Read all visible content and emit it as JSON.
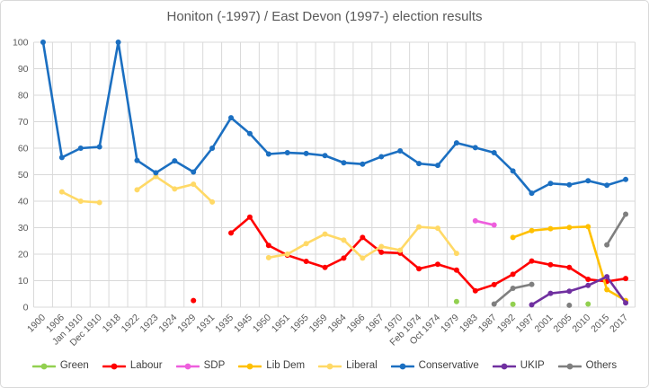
{
  "chart_data": {
    "type": "line",
    "title": "Honiton (-1997) / East Devon (1997-) election results",
    "xlabel": "",
    "ylabel": "",
    "ylim": [
      0,
      100
    ],
    "y_ticks": [
      0,
      10,
      20,
      30,
      40,
      50,
      60,
      70,
      80,
      90,
      100
    ],
    "grid": true,
    "legend_position": "bottom",
    "axis_label_color": "#595959",
    "gridline_color": "#d9d9d9",
    "categories": [
      "1900",
      "1906",
      "Jan 1910",
      "Dec 1910",
      "1918",
      "1922",
      "1923",
      "1924",
      "1929",
      "1931",
      "1935",
      "1945",
      "1950",
      "1951",
      "1955",
      "1959",
      "1964",
      "1966",
      "1967",
      "1970",
      "Feb 1974",
      "Oct 1974",
      "1979",
      "1983",
      "1987",
      "1992",
      "1997",
      "2001",
      "2005",
      "2010",
      "2015",
      "2017"
    ],
    "series": [
      {
        "name": "Green",
        "color": "#92D050",
        "values": [
          null,
          null,
          null,
          null,
          null,
          null,
          null,
          null,
          null,
          null,
          null,
          null,
          null,
          null,
          null,
          null,
          null,
          null,
          null,
          null,
          null,
          null,
          2.1,
          null,
          null,
          1.1,
          null,
          null,
          null,
          1.2,
          null,
          null
        ]
      },
      {
        "name": "Labour",
        "color": "#FF0000",
        "values": [
          null,
          null,
          null,
          null,
          null,
          null,
          null,
          null,
          2.5,
          null,
          28,
          34,
          23.3,
          19.6,
          17.3,
          15,
          18.5,
          26.3,
          20.7,
          20.4,
          14.5,
          16.2,
          14,
          6.2,
          8.5,
          12.4,
          17.4,
          16,
          15,
          10.5,
          9.7,
          10.8
        ]
      },
      {
        "name": "SDP",
        "color": "#EE5EDD",
        "values": [
          null,
          null,
          null,
          null,
          null,
          null,
          null,
          null,
          null,
          null,
          null,
          null,
          null,
          null,
          null,
          null,
          null,
          null,
          null,
          null,
          null,
          null,
          null,
          32.6,
          31,
          null,
          null,
          null,
          null,
          null,
          null,
          null
        ]
      },
      {
        "name": "Lib Dem",
        "color": "#FFC000",
        "values": [
          null,
          null,
          null,
          null,
          null,
          null,
          null,
          null,
          null,
          null,
          null,
          null,
          null,
          null,
          null,
          null,
          null,
          null,
          null,
          null,
          null,
          null,
          null,
          null,
          null,
          26.3,
          28.9,
          29.6,
          30.1,
          30.4,
          6.6,
          2.5
        ]
      },
      {
        "name": "Liberal",
        "color": "#FFD966",
        "values": [
          null,
          43.5,
          40,
          39.5,
          null,
          44.3,
          49.3,
          44.6,
          46.4,
          39.7,
          null,
          null,
          18.7,
          20,
          24,
          27.6,
          25.3,
          18.5,
          22.9,
          21.5,
          30.3,
          29.8,
          20.3,
          null,
          null,
          null,
          null,
          null,
          null,
          null,
          null,
          null
        ]
      },
      {
        "name": "Conservative",
        "color": "#1B6FC1",
        "values": [
          100,
          56.5,
          60,
          60.5,
          100,
          55.4,
          50.7,
          55.2,
          51,
          60,
          71.5,
          65.5,
          57.8,
          58.3,
          58,
          57.2,
          54.5,
          54,
          56.8,
          59,
          54.2,
          53.5,
          62,
          60.2,
          58.3,
          51.4,
          43,
          46.7,
          46.2,
          47.7,
          46,
          48.2
        ]
      },
      {
        "name": "UKIP",
        "color": "#7030A0",
        "values": [
          null,
          null,
          null,
          null,
          null,
          null,
          null,
          null,
          null,
          null,
          null,
          null,
          null,
          null,
          null,
          null,
          null,
          null,
          null,
          null,
          null,
          null,
          null,
          null,
          null,
          null,
          0.9,
          5.2,
          6,
          8.2,
          11.5,
          1.6
        ]
      },
      {
        "name": "Others",
        "color": "#7F7F7F",
        "values": [
          null,
          null,
          null,
          null,
          null,
          null,
          null,
          null,
          null,
          null,
          null,
          null,
          null,
          null,
          null,
          null,
          null,
          null,
          null,
          null,
          null,
          null,
          null,
          null,
          1.2,
          7.1,
          8.6,
          null,
          0.7,
          null,
          23.5,
          35.1
        ]
      }
    ]
  }
}
